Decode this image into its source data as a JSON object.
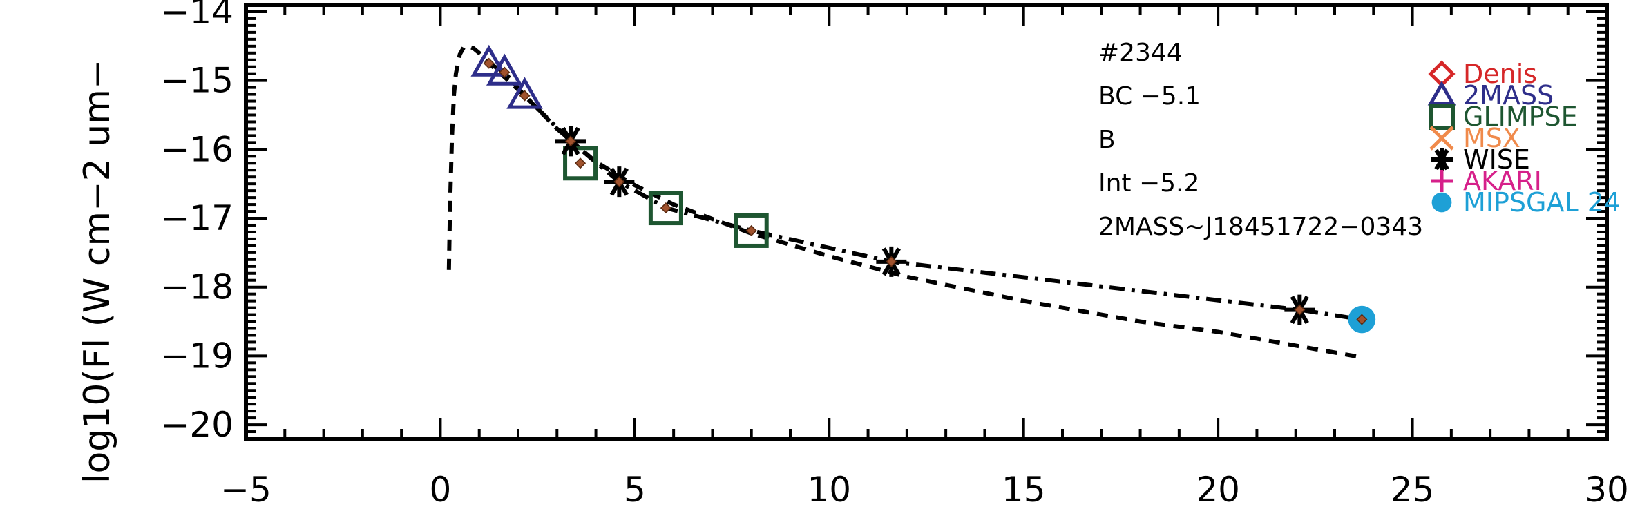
{
  "chart_data": {
    "type": "scatter",
    "title": "",
    "xlabel": "",
    "ylabel": "log10(Fl (W cm−2 um−",
    "xlim": [
      -5,
      30
    ],
    "ylim": [
      -20.2,
      -13.9
    ],
    "x_ticks": [
      -5,
      0,
      5,
      10,
      15,
      20,
      25,
      30
    ],
    "x_tick_labels": [
      "−5",
      "0",
      "5",
      "10",
      "15",
      "20",
      "25",
      "30"
    ],
    "y_ticks": [
      -20,
      -19,
      -18,
      -17,
      -16,
      -15,
      -14
    ],
    "y_tick_labels": [
      "−20",
      "−19",
      "−18",
      "−17",
      "−16",
      "−15",
      "−14"
    ],
    "grid": false,
    "legend_position": "top-right",
    "annotations": [
      "#2344",
      "BC −5.1",
      "B",
      "Int −5.2",
      "2MASS~J18451722−0343"
    ],
    "legend": [
      {
        "name": "Denis",
        "color": "#d62728",
        "marker": "diamond"
      },
      {
        "name": "2MASS",
        "color": "#2e2e8a",
        "marker": "triangle"
      },
      {
        "name": "GLIMPSE",
        "color": "#1e5631",
        "marker": "square"
      },
      {
        "name": "MSX",
        "color": "#f08a4b",
        "marker": "x"
      },
      {
        "name": "WISE",
        "color": "#000000",
        "marker": "asterisk"
      },
      {
        "name": "AKARI",
        "color": "#d6208a",
        "marker": "plus"
      },
      {
        "name": "MIPSGAL 24",
        "color": "#1ea0d6",
        "marker": "circle"
      }
    ],
    "series": [
      {
        "marker": "triangle",
        "color": "#2e2e8a",
        "x": [
          1.25,
          1.65,
          2.17
        ],
        "y": [
          -14.75,
          -14.88,
          -15.22
        ]
      },
      {
        "marker": "square",
        "color": "#1e5631",
        "x": [
          3.6,
          5.8,
          8.0
        ],
        "y": [
          -16.2,
          -16.85,
          -17.18
        ]
      },
      {
        "marker": "asterisk",
        "color": "#000000",
        "x": [
          3.35,
          4.6,
          11.6,
          22.1
        ],
        "y": [
          -15.88,
          -16.47,
          -17.63,
          -18.33
        ]
      },
      {
        "marker": "circle",
        "color": "#1ea0d6",
        "x": [
          23.7
        ],
        "y": [
          -18.47
        ]
      },
      {
        "marker": "diamond-small",
        "color": "#a0522d",
        "x": [
          1.25,
          1.65,
          2.17,
          3.35,
          3.6,
          4.6,
          5.8,
          8.0,
          11.6,
          22.1,
          23.7
        ],
        "y": [
          -14.75,
          -14.88,
          -15.22,
          -15.88,
          -16.2,
          -16.47,
          -16.85,
          -17.18,
          -17.63,
          -18.33,
          -18.47
        ]
      },
      {
        "line": "dashed",
        "color": "#000000",
        "x": [
          0.22,
          0.25,
          0.3,
          0.35,
          0.4,
          0.5,
          0.6,
          0.7,
          0.85,
          1.0,
          1.25,
          1.65,
          2.17,
          3.0,
          4.0,
          5.0,
          6.0,
          8.0,
          10.0,
          12.0,
          15.0,
          18.0,
          20.0,
          23.7
        ],
        "y": [
          -17.75,
          -16.8,
          -15.8,
          -15.2,
          -14.9,
          -14.62,
          -14.52,
          -14.5,
          -14.53,
          -14.6,
          -14.75,
          -14.95,
          -15.22,
          -15.7,
          -16.18,
          -16.52,
          -16.8,
          -17.22,
          -17.55,
          -17.85,
          -18.2,
          -18.5,
          -18.65,
          -19.02
        ]
      },
      {
        "line": "dashdot",
        "color": "#000000",
        "x": [
          1.25,
          1.65,
          2.17,
          3.35,
          4.6,
          5.8,
          8.0,
          11.6,
          22.1,
          23.7
        ],
        "y": [
          -14.75,
          -14.88,
          -15.22,
          -15.88,
          -16.47,
          -16.85,
          -17.18,
          -17.63,
          -18.33,
          -18.47
        ]
      }
    ]
  }
}
